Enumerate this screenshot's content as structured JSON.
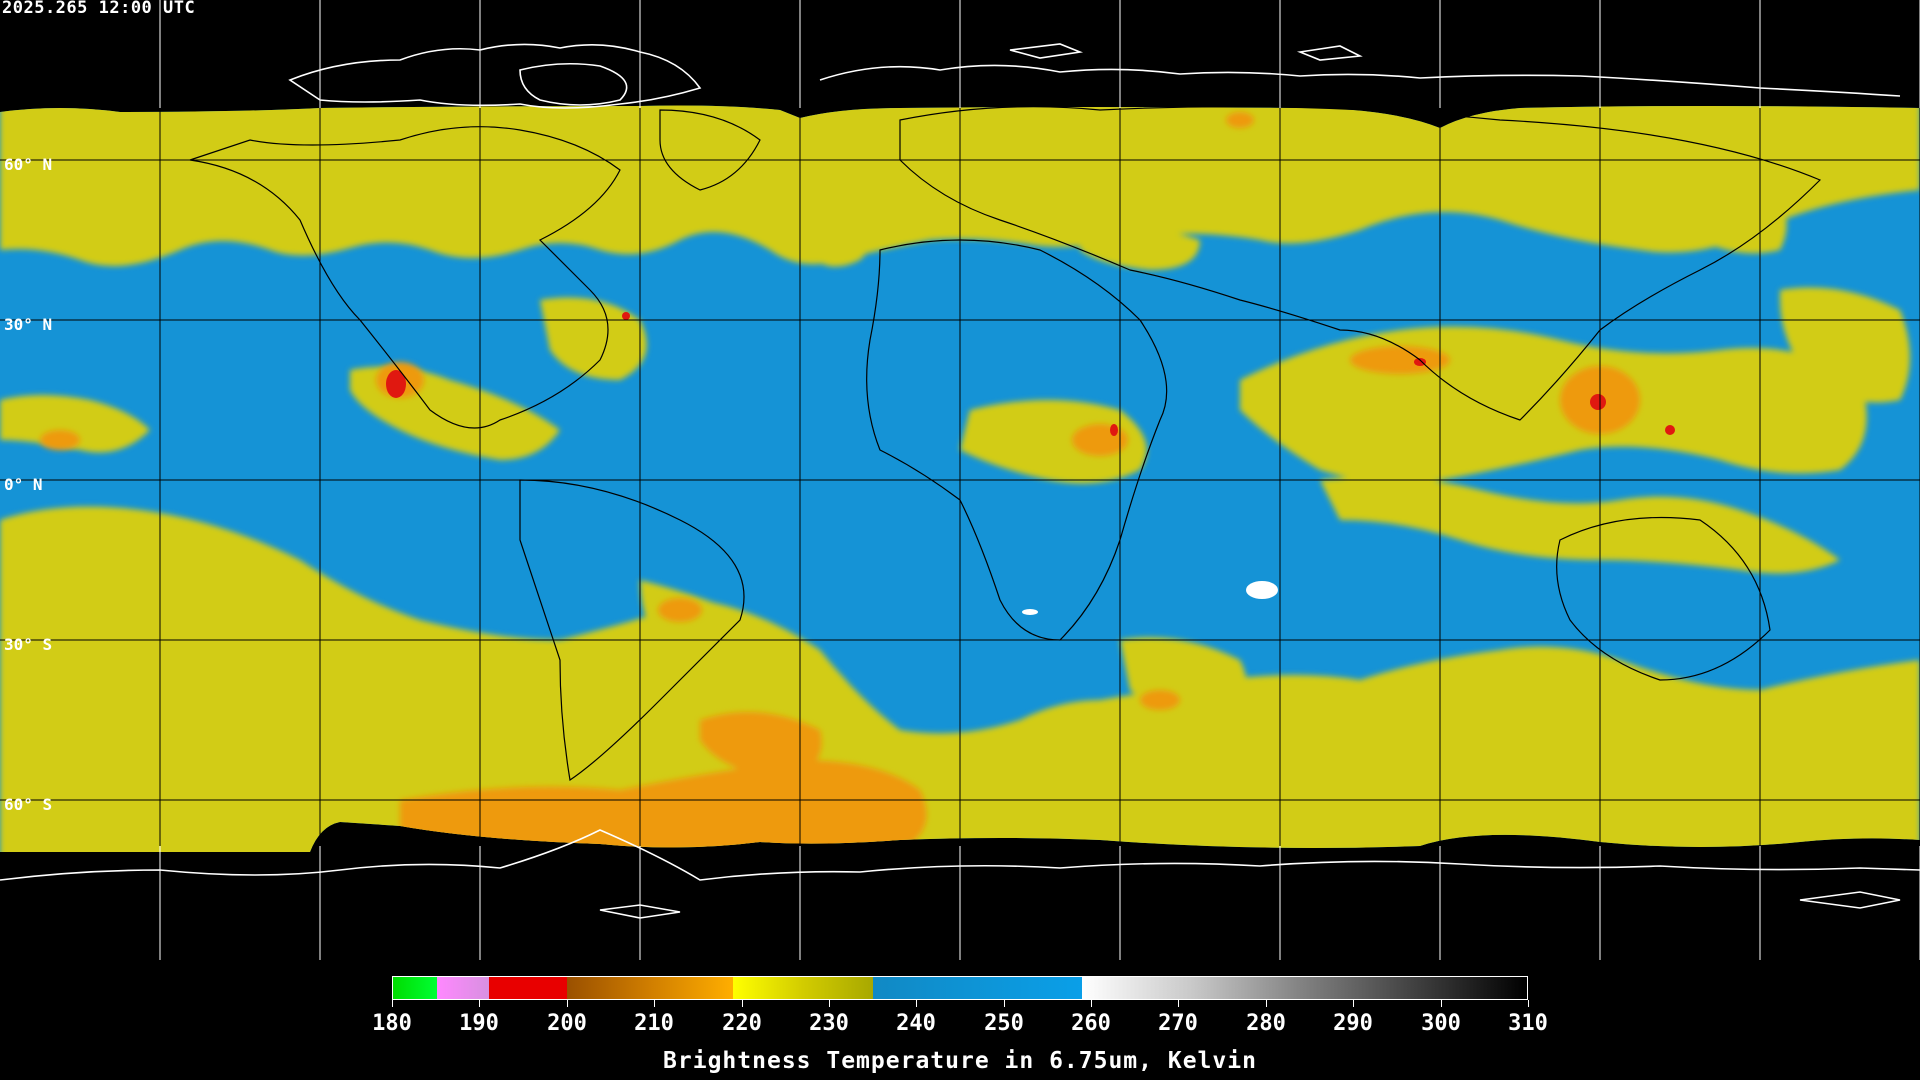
{
  "header": {
    "timestamp": "2025.265 12:00 UTC"
  },
  "map": {
    "projection": "equirectangular",
    "lat_labels": [
      {
        "lat": 60,
        "label": "60° N"
      },
      {
        "lat": 30,
        "label": "30° N"
      },
      {
        "lat": 0,
        "label": "0° N"
      },
      {
        "lat": -30,
        "label": "30° S"
      },
      {
        "lat": -60,
        "label": "60° S"
      }
    ],
    "gridlines": {
      "lat_step_deg": 30,
      "lon_step_deg": 30,
      "color": "#000000",
      "meridian_polar_color": "#ffffff"
    },
    "colors": {
      "ocean_dry": "#1593d6",
      "moist": "#d2cc16",
      "cold_cloud": "#ee9a10",
      "very_cold": "#e01810",
      "coastline_land": "#000000",
      "coastline_polar": "#ffffff",
      "background": "#000000"
    }
  },
  "colorbar": {
    "min": 180,
    "max": 310,
    "ticks": [
      "180",
      "190",
      "200",
      "210",
      "220",
      "230",
      "240",
      "250",
      "260",
      "270",
      "280",
      "290",
      "300",
      "310"
    ],
    "segments": [
      {
        "from": 180,
        "to": 185,
        "css": "linear-gradient(90deg,#00dc00,#00ff33)"
      },
      {
        "from": 185,
        "to": 191,
        "css": "linear-gradient(90deg,#ff88ff,#d890e0)"
      },
      {
        "from": 191,
        "to": 200,
        "css": "#e80000"
      },
      {
        "from": 200,
        "to": 219,
        "css": "linear-gradient(90deg,#9a5000,#d07e00,#ffae00)"
      },
      {
        "from": 219,
        "to": 235,
        "css": "linear-gradient(90deg,#ffff00,#d2cc00,#a8a800)"
      },
      {
        "from": 235,
        "to": 259,
        "css": "linear-gradient(90deg,#1189c4,#0a9fe8)"
      },
      {
        "from": 259,
        "to": 310,
        "css": "linear-gradient(90deg,#ffffff,#c8c8c8,#808080,#404040,#000000)"
      }
    ],
    "title": "Brightness Temperature in 6.75um, Kelvin"
  }
}
